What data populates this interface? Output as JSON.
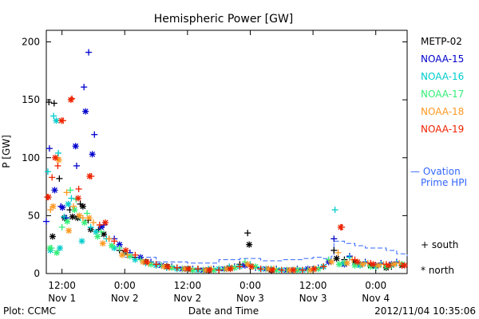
{
  "chart_data": {
    "type": "scatter",
    "title": "Hemispheric Power [GW]",
    "xlabel": "Date and Time",
    "ylabel": "P [GW]",
    "x_unit": "hours from 2012-11-01 00:00 UT",
    "xlim": [
      9,
      78
    ],
    "ylim": [
      0,
      210
    ],
    "y_ticks": [
      0,
      50,
      100,
      150,
      200
    ],
    "x_ticks": [
      {
        "x": 12,
        "line1": "12:00",
        "line2": "Nov 1"
      },
      {
        "x": 24,
        "line1": "0:00",
        "line2": "Nov 2"
      },
      {
        "x": 36,
        "line1": "12:00",
        "line2": "Nov 2"
      },
      {
        "x": 48,
        "line1": "0:00",
        "line2": "Nov 3"
      },
      {
        "x": 60,
        "line1": "12:00",
        "line2": "Nov 3"
      },
      {
        "x": 72,
        "line1": "0:00",
        "line2": "Nov 4"
      }
    ],
    "legend": {
      "placement": "right"
    },
    "marker_key": [
      {
        "marker": "+",
        "label": "south"
      },
      {
        "marker": "*",
        "label": "north"
      }
    ],
    "series": [
      {
        "name": "METP-02",
        "color": "#000000",
        "south": [
          [
            9.5,
            148
          ],
          [
            10.5,
            147
          ],
          [
            11.5,
            82
          ],
          [
            13.5,
            55
          ],
          [
            15.5,
            60
          ],
          [
            17,
            46
          ],
          [
            19,
            38
          ],
          [
            21,
            30
          ],
          [
            23,
            20
          ],
          [
            26,
            14
          ],
          [
            30,
            8
          ],
          [
            34,
            5
          ],
          [
            38,
            4
          ],
          [
            42,
            3
          ],
          [
            46,
            8
          ],
          [
            47.5,
            35
          ],
          [
            50,
            4
          ],
          [
            55,
            3
          ],
          [
            60,
            4
          ],
          [
            64,
            20
          ],
          [
            66,
            12
          ],
          [
            69,
            8
          ],
          [
            72,
            5
          ],
          [
            75,
            6
          ],
          [
            77,
            8
          ]
        ],
        "north": [
          [
            10.2,
            32
          ],
          [
            12.5,
            48
          ],
          [
            14,
            49
          ],
          [
            15,
            48
          ],
          [
            16,
            58
          ],
          [
            17.5,
            38
          ],
          [
            20,
            34
          ],
          [
            24,
            18
          ],
          [
            28,
            10
          ],
          [
            32,
            6
          ],
          [
            36,
            4
          ],
          [
            40,
            3
          ],
          [
            44,
            5
          ],
          [
            47.8,
            25
          ],
          [
            52,
            3
          ],
          [
            57,
            3
          ],
          [
            62,
            6
          ],
          [
            64.5,
            13
          ],
          [
            68,
            10
          ],
          [
            71,
            7
          ],
          [
            74,
            5
          ],
          [
            77,
            7
          ]
        ]
      },
      {
        "name": "NOAA-15",
        "color": "#0000cc",
        "south": [
          [
            9,
            45
          ],
          [
            9.6,
            108
          ],
          [
            11.8,
            58
          ],
          [
            12.8,
            48
          ],
          [
            14.8,
            93
          ],
          [
            16.2,
            161
          ],
          [
            17.1,
            191
          ],
          [
            18.2,
            120
          ],
          [
            20,
            42
          ],
          [
            22,
            30
          ],
          [
            25,
            18
          ],
          [
            29,
            10
          ],
          [
            33,
            6
          ],
          [
            37,
            4
          ],
          [
            41,
            4
          ],
          [
            45,
            6
          ],
          [
            49,
            5
          ],
          [
            53,
            4
          ],
          [
            57,
            4
          ],
          [
            61,
            5
          ],
          [
            64,
            30
          ],
          [
            67,
            15
          ],
          [
            70,
            10
          ],
          [
            73,
            9
          ],
          [
            76,
            10
          ]
        ],
        "north": [
          [
            10.6,
            72
          ],
          [
            12.1,
            57
          ],
          [
            14.6,
            110
          ],
          [
            16.5,
            140
          ],
          [
            17.8,
            103
          ],
          [
            19.5,
            40
          ],
          [
            23,
            25
          ],
          [
            27,
            14
          ],
          [
            31,
            7
          ],
          [
            35,
            4
          ],
          [
            39,
            3
          ],
          [
            43,
            4
          ],
          [
            47,
            7
          ],
          [
            51,
            4
          ],
          [
            55,
            3
          ],
          [
            59,
            4
          ],
          [
            63,
            10
          ],
          [
            66,
            8
          ],
          [
            69,
            8
          ],
          [
            72,
            7
          ],
          [
            75,
            8
          ]
        ]
      },
      {
        "name": "NOAA-16",
        "color": "#00cccc",
        "south": [
          [
            9.3,
            88
          ],
          [
            10.4,
            136
          ],
          [
            11.3,
            104
          ],
          [
            12.4,
            49
          ],
          [
            13.8,
            65
          ],
          [
            15.5,
            48
          ],
          [
            17.5,
            40
          ],
          [
            20.5,
            30
          ],
          [
            24,
            18
          ],
          [
            28,
            9
          ],
          [
            32,
            5
          ],
          [
            36,
            4
          ],
          [
            40,
            4
          ],
          [
            44,
            6
          ],
          [
            48,
            8
          ],
          [
            52,
            4
          ],
          [
            56,
            3
          ],
          [
            60,
            4
          ],
          [
            64.2,
            55
          ],
          [
            67,
            14
          ],
          [
            70,
            9
          ],
          [
            73,
            8
          ],
          [
            76,
            9
          ]
        ],
        "north": [
          [
            9.8,
            20
          ],
          [
            10.9,
            132
          ],
          [
            11.6,
            22
          ],
          [
            13.2,
            60
          ],
          [
            15.8,
            28
          ],
          [
            18.5,
            36
          ],
          [
            22,
            22
          ],
          [
            26,
            12
          ],
          [
            30,
            7
          ],
          [
            34,
            4
          ],
          [
            38,
            3
          ],
          [
            42,
            4
          ],
          [
            46,
            6
          ],
          [
            50,
            4
          ],
          [
            54,
            3
          ],
          [
            58,
            3
          ],
          [
            62,
            6
          ],
          [
            66,
            9
          ],
          [
            69,
            7
          ],
          [
            72,
            6
          ],
          [
            75,
            7
          ]
        ]
      },
      {
        "name": "NOAA-17",
        "color": "#33ee77",
        "south": [
          [
            10,
            22
          ],
          [
            12,
            40
          ],
          [
            13.6,
            72
          ],
          [
            14.7,
            64
          ],
          [
            16.8,
            52
          ],
          [
            19.5,
            36
          ],
          [
            23,
            22
          ],
          [
            27,
            12
          ],
          [
            31,
            7
          ],
          [
            35,
            4
          ],
          [
            39,
            3
          ],
          [
            43,
            4
          ],
          [
            47,
            10
          ],
          [
            51,
            4
          ],
          [
            55,
            3
          ],
          [
            59,
            3
          ],
          [
            63,
            12
          ],
          [
            66,
            10
          ],
          [
            69,
            8
          ],
          [
            72,
            6
          ],
          [
            75,
            7
          ]
        ],
        "north": [
          [
            9.7,
            22
          ],
          [
            11,
            18
          ],
          [
            13,
            45
          ],
          [
            14.4,
            55
          ],
          [
            16.3,
            44
          ],
          [
            18.8,
            32
          ],
          [
            21.5,
            24
          ],
          [
            25,
            15
          ],
          [
            29,
            8
          ],
          [
            33,
            5
          ],
          [
            37,
            3
          ],
          [
            41,
            3
          ],
          [
            45,
            5
          ],
          [
            49,
            6
          ],
          [
            53,
            3
          ],
          [
            57,
            3
          ],
          [
            61,
            4
          ],
          [
            65,
            8
          ],
          [
            68,
            7
          ],
          [
            71,
            6
          ],
          [
            74,
            6
          ],
          [
            77,
            8
          ]
        ]
      },
      {
        "name": "NOAA-18",
        "color": "#ff9922",
        "south": [
          [
            9.8,
            55
          ],
          [
            11.1,
            100
          ],
          [
            12.9,
            70
          ],
          [
            14.2,
            58
          ],
          [
            16,
            48
          ],
          [
            18,
            44
          ],
          [
            21,
            30
          ],
          [
            24.5,
            16
          ],
          [
            28.5,
            9
          ],
          [
            32.5,
            5
          ],
          [
            36.5,
            4
          ],
          [
            40.5,
            4
          ],
          [
            44.5,
            5
          ],
          [
            48.5,
            6
          ],
          [
            52.5,
            4
          ],
          [
            56.5,
            3
          ],
          [
            60.5,
            4
          ],
          [
            64.8,
            18
          ],
          [
            67.5,
            12
          ],
          [
            70.5,
            9
          ],
          [
            73.5,
            8
          ],
          [
            76.5,
            9
          ]
        ],
        "north": [
          [
            10.3,
            58
          ],
          [
            11.4,
            98
          ],
          [
            13.3,
            37
          ],
          [
            15.3,
            50
          ],
          [
            17.2,
            48
          ],
          [
            19.8,
            26
          ],
          [
            23.5,
            16
          ],
          [
            27.5,
            10
          ],
          [
            31.5,
            6
          ],
          [
            35.5,
            4
          ],
          [
            39.5,
            3
          ],
          [
            43.5,
            4
          ],
          [
            47.5,
            8
          ],
          [
            51.5,
            4
          ],
          [
            55.5,
            3
          ],
          [
            59.5,
            3
          ],
          [
            63.5,
            10
          ],
          [
            66.5,
            9
          ],
          [
            69.5,
            8
          ],
          [
            72.5,
            7
          ],
          [
            75.5,
            8
          ]
        ]
      },
      {
        "name": "NOAA-19",
        "color": "#ee2200",
        "south": [
          [
            9.2,
            66
          ],
          [
            10.1,
            83
          ],
          [
            11.2,
            93
          ],
          [
            12.2,
            132
          ],
          [
            13.9,
            151
          ],
          [
            15.2,
            73
          ],
          [
            17.6,
            84
          ],
          [
            19.2,
            42
          ],
          [
            22,
            28
          ],
          [
            26,
            16
          ],
          [
            30,
            8
          ],
          [
            34,
            5
          ],
          [
            38,
            4
          ],
          [
            42,
            3
          ],
          [
            46,
            6
          ],
          [
            50,
            4
          ],
          [
            54,
            3
          ],
          [
            58,
            3
          ],
          [
            62,
            6
          ],
          [
            65.5,
            40
          ],
          [
            68,
            12
          ],
          [
            71,
            9
          ],
          [
            74,
            8
          ],
          [
            77,
            7
          ]
        ],
        "north": [
          [
            9.4,
            66
          ],
          [
            10.7,
            100
          ],
          [
            11.9,
            132
          ],
          [
            13.7,
            150
          ],
          [
            15.1,
            65
          ],
          [
            17.3,
            84
          ],
          [
            20.3,
            44
          ],
          [
            24.2,
            20
          ],
          [
            28.2,
            10
          ],
          [
            32.2,
            6
          ],
          [
            36.2,
            4
          ],
          [
            40.2,
            3
          ],
          [
            44.2,
            4
          ],
          [
            48.2,
            6
          ],
          [
            52.2,
            3
          ],
          [
            56.2,
            3
          ],
          [
            60.2,
            4
          ],
          [
            65.3,
            40
          ],
          [
            68.5,
            10
          ],
          [
            71.5,
            8
          ],
          [
            74.5,
            7
          ],
          [
            77.5,
            7
          ]
        ]
      }
    ],
    "ovation": {
      "name": "Ovation Prime HPI",
      "color": "#3366ff",
      "points": [
        [
          24,
          14
        ],
        [
          30,
          10
        ],
        [
          36,
          9
        ],
        [
          42,
          12
        ],
        [
          46,
          13
        ],
        [
          50,
          11
        ],
        [
          54,
          12
        ],
        [
          58,
          13
        ],
        [
          60,
          14
        ],
        [
          62,
          13
        ],
        [
          63.5,
          15
        ],
        [
          64,
          28
        ],
        [
          66,
          26
        ],
        [
          68,
          24
        ],
        [
          70,
          22
        ],
        [
          72,
          22
        ],
        [
          74,
          20
        ],
        [
          76,
          17
        ],
        [
          78,
          15
        ]
      ]
    }
  },
  "legend_labels": {
    "s0": "METP-02",
    "s1": "NOAA-15",
    "s2": "NOAA-16",
    "s3": "NOAA-17",
    "s4": "NOAA-18",
    "s5": "NOAA-19",
    "ov_line1": "— Ovation",
    "ov_line2": "Prime HPI",
    "south": "+ south",
    "north": "* north"
  },
  "footer": {
    "left": "Plot: CCMC",
    "right": "2012/11/04 10:35:06"
  }
}
